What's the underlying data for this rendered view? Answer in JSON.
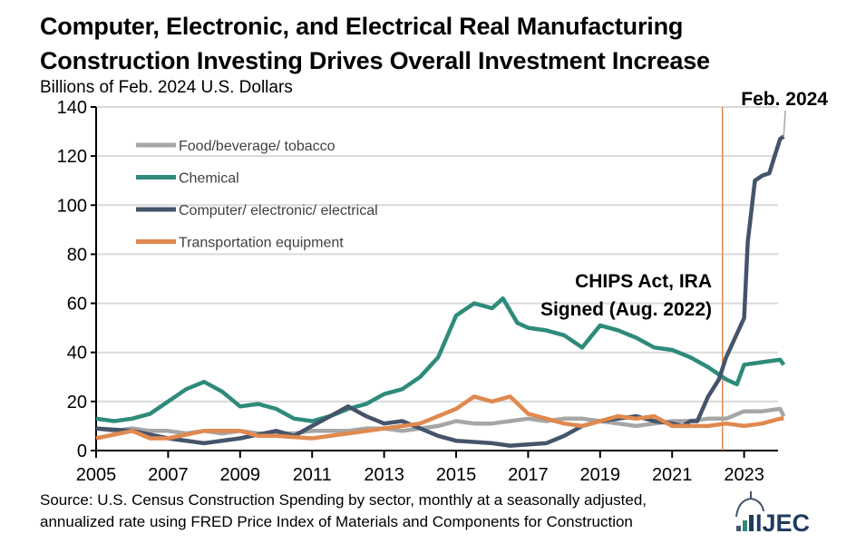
{
  "title_line1": "Computer, Electronic, and Electrical Real Manufacturing",
  "title_line2": "Construction Investing Drives Overall Investment Increase",
  "unit": "Billions of Feb. 2024 U.S. Dollars",
  "source_line1": "Source: U.S. Census Construction Spending by sector, monthly at a seasonally adjusted,",
  "source_line2": "annualized rate using FRED Price Index of Materials and Components for Construction",
  "logo_text": "JEC",
  "chart_data": {
    "type": "line",
    "ylim": [
      0,
      140
    ],
    "xlim": [
      2005,
      2024.2
    ],
    "yticks": [
      0,
      20,
      40,
      60,
      80,
      100,
      120,
      140
    ],
    "xticks": [
      2005,
      2007,
      2009,
      2011,
      2013,
      2015,
      2017,
      2019,
      2021,
      2023
    ],
    "grid": true,
    "legend_placement": "top-left",
    "annotations": [
      {
        "text_line1": "CHIPS Act, IRA",
        "text_line2": "Signed (Aug. 2022)",
        "x": 2022.6,
        "color": "#E0894F"
      },
      {
        "text": "Feb. 2024",
        "x": 2024.1
      }
    ],
    "series": [
      {
        "name": "Food/beverage/ tobacco",
        "color": "#A6A6A6",
        "x": [
          2005,
          2005.5,
          2006,
          2006.5,
          2007,
          2007.5,
          2008,
          2008.5,
          2009,
          2009.5,
          2010,
          2010.5,
          2011,
          2011.5,
          2012,
          2012.5,
          2013,
          2013.5,
          2014,
          2014.5,
          2015,
          2015.5,
          2016,
          2016.5,
          2017,
          2017.5,
          2018,
          2018.5,
          2019,
          2019.5,
          2020,
          2020.5,
          2021,
          2021.5,
          2022,
          2022.5,
          2023,
          2023.5,
          2024,
          2024.1
        ],
        "values": [
          9,
          8,
          9,
          8,
          8,
          7,
          8,
          7,
          8,
          7,
          7,
          7,
          8,
          8,
          8,
          9,
          9,
          8,
          9,
          10,
          12,
          11,
          11,
          12,
          13,
          12,
          13,
          13,
          12,
          11,
          10,
          11,
          12,
          12,
          13,
          13,
          16,
          16,
          17,
          14
        ]
      },
      {
        "name": "Chemical",
        "color": "#2E8B7A",
        "x": [
          2005,
          2005.5,
          2006,
          2006.5,
          2007,
          2007.5,
          2008,
          2008.5,
          2009,
          2009.5,
          2010,
          2010.5,
          2011,
          2011.5,
          2012,
          2012.5,
          2013,
          2013.5,
          2014,
          2014.5,
          2015,
          2015.5,
          2016,
          2016.3,
          2016.7,
          2017,
          2017.5,
          2018,
          2018.5,
          2019,
          2019.5,
          2020,
          2020.5,
          2021,
          2021.5,
          2022,
          2022.5,
          2022.8,
          2023,
          2023.5,
          2024,
          2024.1
        ],
        "values": [
          13,
          12,
          13,
          15,
          20,
          25,
          28,
          24,
          18,
          19,
          17,
          13,
          12,
          14,
          17,
          19,
          23,
          25,
          30,
          38,
          55,
          60,
          58,
          62,
          52,
          50,
          49,
          47,
          42,
          51,
          49,
          46,
          42,
          41,
          38,
          34,
          29,
          27,
          35,
          36,
          37,
          35
        ]
      },
      {
        "name": "Computer/ electronic/ electrical",
        "color": "#44546A",
        "x": [
          2005,
          2006,
          2007,
          2008,
          2009,
          2010,
          2010.5,
          2011,
          2011.5,
          2012,
          2012.5,
          2013,
          2013.5,
          2014,
          2014.5,
          2015,
          2016,
          2016.5,
          2017.5,
          2018,
          2018.5,
          2019,
          2019.5,
          2020,
          2020.5,
          2021,
          2021.3,
          2021.5,
          2021.7,
          2022,
          2022.3,
          2022.5,
          2022.75,
          2023,
          2023.1,
          2023.3,
          2023.5,
          2023.7,
          2023.85,
          2024,
          2024.1
        ],
        "values": [
          9,
          8,
          5,
          3,
          5,
          8,
          6,
          10,
          14,
          18,
          14,
          11,
          12,
          9,
          6,
          4,
          3,
          2,
          3,
          6,
          10,
          12,
          13,
          14,
          12,
          11,
          10,
          12,
          12,
          22,
          29,
          38,
          46,
          54,
          85,
          110,
          112,
          113,
          120,
          127,
          128
        ]
      },
      {
        "name": "Transportation equipment",
        "color": "#E0894F",
        "x": [
          2005,
          2006,
          2006.5,
          2007,
          2008,
          2009,
          2009.5,
          2010,
          2011,
          2012,
          2013,
          2014,
          2015,
          2015.5,
          2016,
          2016.5,
          2017,
          2017.5,
          2018,
          2018.5,
          2019,
          2019.5,
          2020,
          2020.5,
          2021,
          2022,
          2022.5,
          2023,
          2023.5,
          2024,
          2024.1
        ],
        "values": [
          5,
          8,
          5,
          5,
          8,
          8,
          6,
          6,
          5,
          7,
          9,
          11,
          17,
          22,
          20,
          22,
          15,
          13,
          11,
          10,
          12,
          14,
          13,
          14,
          10,
          10,
          11,
          10,
          11,
          13,
          13
        ]
      }
    ]
  }
}
